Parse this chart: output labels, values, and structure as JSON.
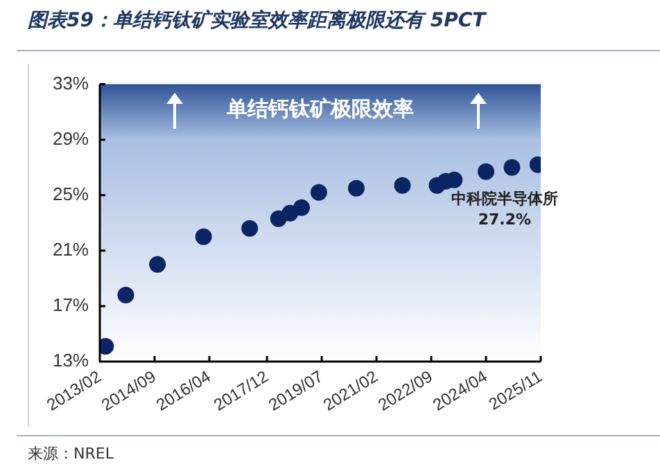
{
  "chart_data": {
    "type": "scatter",
    "title": "图表59：单结钙钛矿实验室效率距离极限还有 5PCT",
    "x": [
      "2013-04",
      "2013-11",
      "2014-10",
      "2016-02",
      "2017-06",
      "2018-04",
      "2018-08",
      "2018-12",
      "2019-06",
      "2020-07",
      "2021-11",
      "2022-11",
      "2023-02",
      "2023-05",
      "2024-04",
      "2025-01",
      "2025-10"
    ],
    "series": [
      {
        "color": "#0b2463",
        "values": [
          14.1,
          17.8,
          20.0,
          22.0,
          22.6,
          23.3,
          23.7,
          24.1,
          25.2,
          25.5,
          25.7,
          25.7,
          26.0,
          26.1,
          26.7,
          27.0,
          27.2
        ]
      }
    ],
    "xlim": [
      "2013-02",
      "2025-11"
    ],
    "xticks": [
      {
        "value": "2013-02",
        "label": "2013/02"
      },
      {
        "value": "2014-09",
        "label": "2014/09"
      },
      {
        "value": "2016-04",
        "label": "2016/04"
      },
      {
        "value": "2017-12",
        "label": "2017/12"
      },
      {
        "value": "2019-07",
        "label": "2019/07"
      },
      {
        "value": "2021-02",
        "label": "2021/02"
      },
      {
        "value": "2022-09",
        "label": "2022/09"
      },
      {
        "value": "2024-04",
        "label": "2024/04"
      },
      {
        "value": "2025-11",
        "label": "2025/11"
      }
    ],
    "ylim": [
      13,
      33
    ],
    "yticks": [
      {
        "value": 13,
        "label": "13%"
      },
      {
        "value": 17,
        "label": "17%"
      },
      {
        "value": 21,
        "label": "21%"
      },
      {
        "value": 25,
        "label": "25%"
      },
      {
        "value": 29,
        "label": "29%"
      },
      {
        "value": 33,
        "label": "33%"
      }
    ],
    "bands": [
      {
        "axis": "y",
        "from": 13,
        "to": 33,
        "label": "单结钙钛矿极限效率",
        "color": "#2f5496"
      }
    ],
    "annotations": [
      {
        "text": "中科院半导体所 27.2%",
        "x": "2025-10",
        "y": 27.2
      },
      "来源：NREL"
    ],
    "marker": "circle",
    "grid": false,
    "legend": false
  }
}
